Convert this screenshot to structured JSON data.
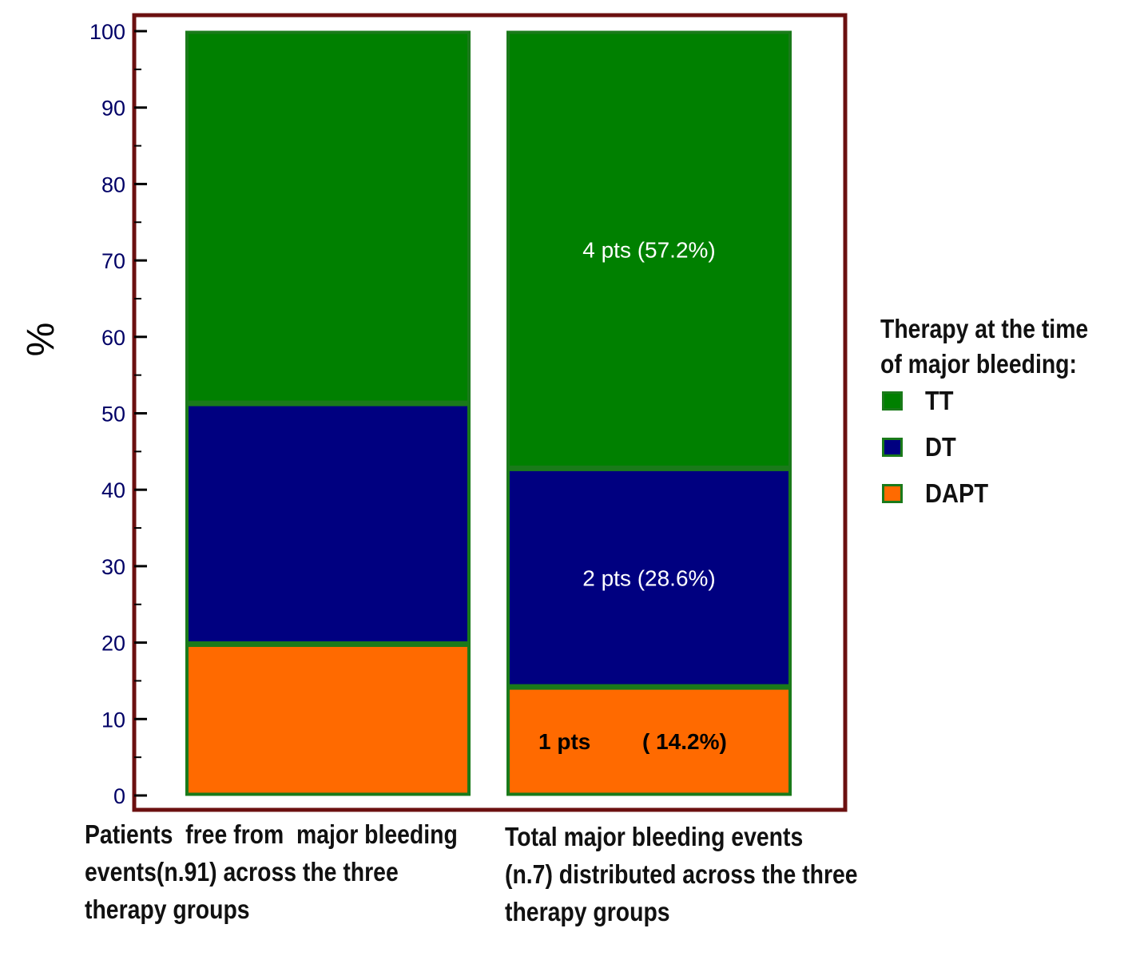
{
  "chart_data": {
    "type": "bar",
    "stacked": true,
    "ylabel": "%",
    "ylim": [
      0,
      100
    ],
    "yticks": [
      0,
      10,
      20,
      30,
      40,
      50,
      60,
      70,
      80,
      90,
      100
    ],
    "categories": [
      "Patients  free from  major bleeding\nevents(n.91) across the three\ntherapy groups",
      "Total major bleeding events\n(n.7) distributed across the three\ntherapy groups"
    ],
    "series": [
      {
        "name": "DAPT",
        "values": [
          19.8,
          14.2
        ],
        "color": "#ff6a00"
      },
      {
        "name": "DT",
        "values": [
          31.5,
          28.6
        ],
        "color": "#000080"
      },
      {
        "name": "TT",
        "values": [
          48.7,
          57.2
        ],
        "color": "#008000"
      }
    ],
    "data_labels": [
      {
        "category": 1,
        "series": "TT",
        "text": "4 pts (57.2%)",
        "color": "#ffffff",
        "bold": false
      },
      {
        "category": 1,
        "series": "DT",
        "text": "2 pts (28.6%)",
        "color": "#ffffff",
        "bold": false
      },
      {
        "category": 1,
        "series": "DAPT",
        "text": "1 pts",
        "color": "#000000",
        "bold": true,
        "part": "left"
      },
      {
        "category": 1,
        "series": "DAPT",
        "text": "( 14.2%)",
        "color": "#000000",
        "bold": true,
        "part": "right"
      }
    ],
    "legend": {
      "title_lines": [
        "Therapy at the time",
        "of major bleeding:"
      ],
      "entries": [
        "TT",
        "DT",
        "DAPT"
      ],
      "position": "right"
    },
    "colors": {
      "frame": "#6b1010",
      "tick_label": "#000066",
      "bar_border": "#1a7a1a"
    }
  }
}
